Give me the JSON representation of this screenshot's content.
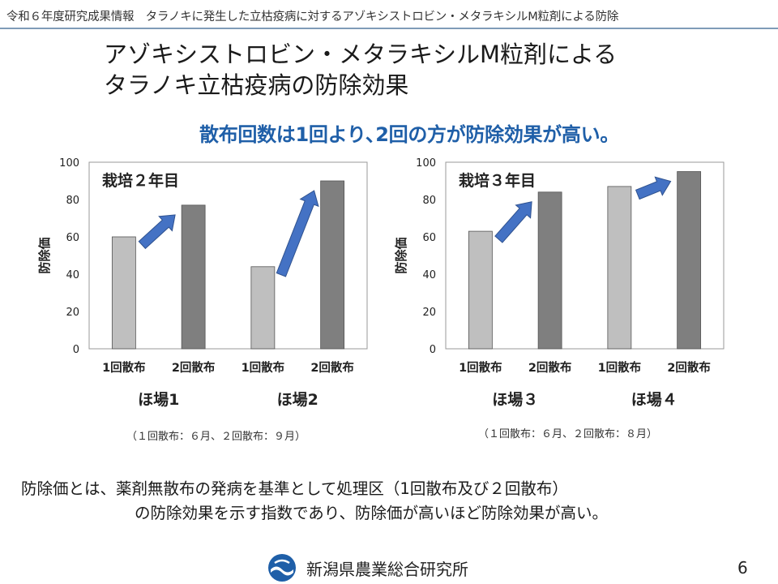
{
  "header": {
    "text": "令和６年度研究成果情報　タラノキに発生した立枯疫病に対するアゾキシストロビン・メタラキシルM粒剤による防除"
  },
  "title": {
    "line1": "アゾキシストロビン・メタラキシルM粒剤による",
    "line2": "タラノキ立枯疫病の防除効果"
  },
  "headline": "散布回数は1回より､2回の方が防除効果が高い。",
  "colors": {
    "accent": "#1f5fa8",
    "bar_single": "#bfbfbf",
    "bar_double": "#7f7f7f",
    "arrow": "#4472c4",
    "rule": "#7f9cb8"
  },
  "chart_data": [
    {
      "type": "bar",
      "title": "栽培２年目",
      "ylabel": "防除価",
      "ylim": [
        0,
        100
      ],
      "yticks": [
        "0",
        "20",
        "40",
        "60",
        "80",
        "100"
      ],
      "grid": false,
      "categories": [
        "1回散布",
        "2回散布",
        "1回散布",
        "2回散布"
      ],
      "values": [
        60,
        77,
        44,
        90
      ],
      "groups": [
        "ほ場1",
        "ほ場2"
      ],
      "note": "（１回散布：６月、２回散布：９月）"
    },
    {
      "type": "bar",
      "title": "栽培３年目",
      "ylabel": "防除価",
      "ylim": [
        0,
        100
      ],
      "yticks": [
        "0",
        "20",
        "40",
        "60",
        "80",
        "100"
      ],
      "grid": false,
      "categories": [
        "1回散布",
        "2回散布",
        "1回散布",
        "2回散布"
      ],
      "values": [
        63,
        84,
        87,
        95
      ],
      "groups": [
        "ほ場３",
        "ほ場４"
      ],
      "note": "（１回散布：６月、２回散布：８月）"
    }
  ],
  "definition": {
    "line1": "防除価とは、薬剤無散布の発病を基準として処理区（1回散布及び２回散布）",
    "line2": "の防除効果を示す指数であり、防除価が高いほど防除効果が高い。"
  },
  "footer": {
    "org": "新潟県農業総合研究所",
    "logo_icon": "prefecture-logo-icon",
    "page": "6"
  }
}
